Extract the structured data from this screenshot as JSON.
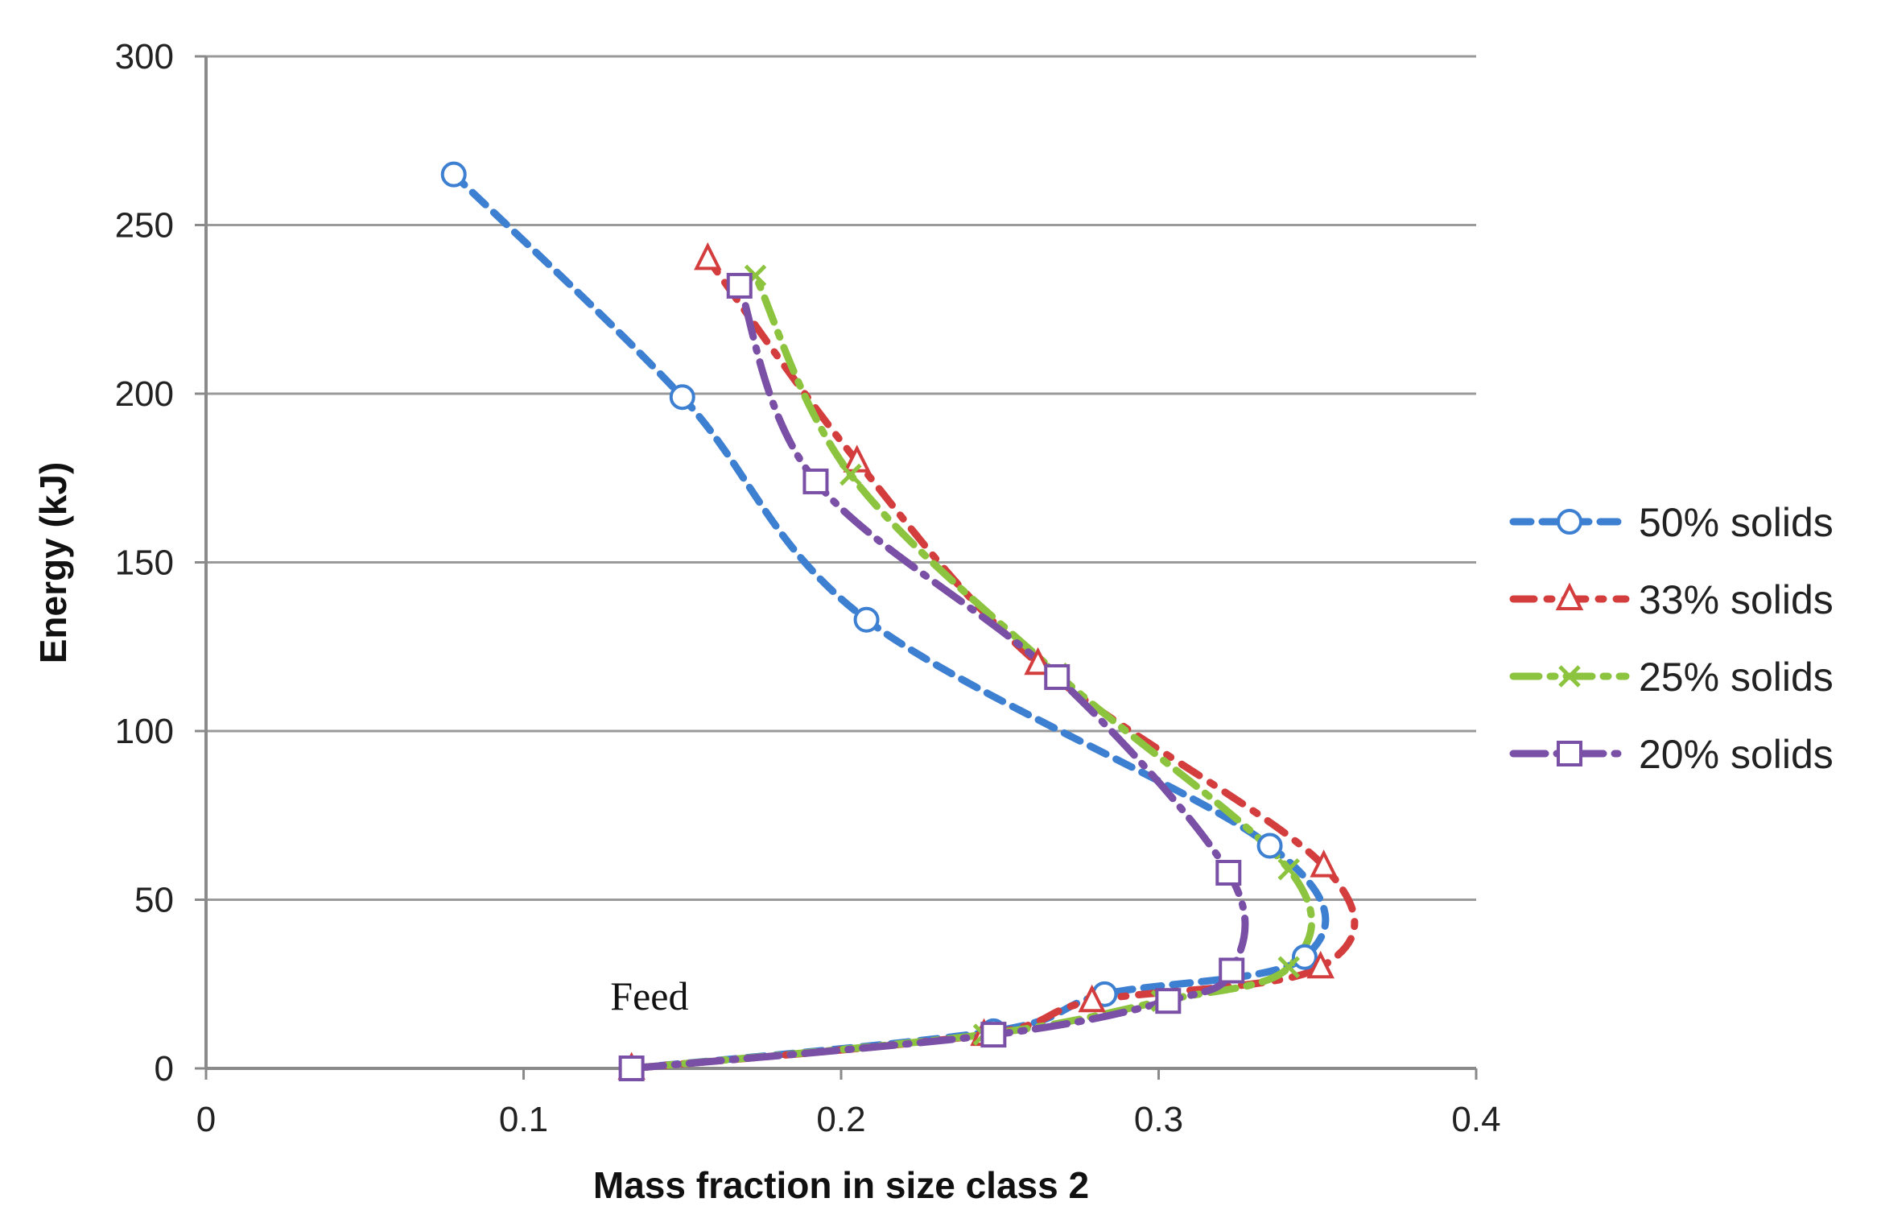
{
  "chart_data": {
    "type": "line",
    "title": "",
    "xlabel": "Mass fraction in size class 2",
    "ylabel": "Energy (kJ)",
    "xlim": [
      0,
      0.4
    ],
    "ylim": [
      0,
      300
    ],
    "x_ticks": [
      "0",
      "0.1",
      "0.2",
      "0.3",
      "0.4"
    ],
    "y_ticks": [
      "0",
      "50",
      "100",
      "150",
      "200",
      "250",
      "300"
    ],
    "grid": "horizontal",
    "legend_position": "right",
    "annotations": [
      {
        "text": "Feed",
        "x": 0.14,
        "y": 15
      }
    ],
    "series": [
      {
        "name": "50% solids",
        "color": "#3d7fd1",
        "marker": "circle",
        "x": [
          0.134,
          0.248,
          0.283,
          0.346,
          0.335,
          0.208,
          0.15,
          0.078
        ],
        "y": [
          0,
          11,
          22,
          33,
          66,
          133,
          199,
          265
        ]
      },
      {
        "name": "33% solids",
        "color": "#d43d3d",
        "marker": "triangle",
        "x": [
          0.134,
          0.245,
          0.279,
          0.351,
          0.352,
          0.262,
          0.205,
          0.158
        ],
        "y": [
          0,
          10,
          20,
          30,
          60,
          120,
          180,
          240
        ]
      },
      {
        "name": "25% solids",
        "color": "#8dc43f",
        "marker": "x",
        "x": [
          0.134,
          0.245,
          0.301,
          0.341,
          0.341,
          0.268,
          0.203,
          0.173
        ],
        "y": [
          0,
          10,
          20,
          30,
          59,
          117,
          176,
          235
        ]
      },
      {
        "name": "20% solids",
        "color": "#7a4fa6",
        "marker": "square",
        "x": [
          0.134,
          0.248,
          0.303,
          0.323,
          0.322,
          0.268,
          0.192,
          0.168
        ],
        "y": [
          0,
          10,
          20,
          29,
          58,
          116,
          174,
          232
        ]
      }
    ]
  }
}
